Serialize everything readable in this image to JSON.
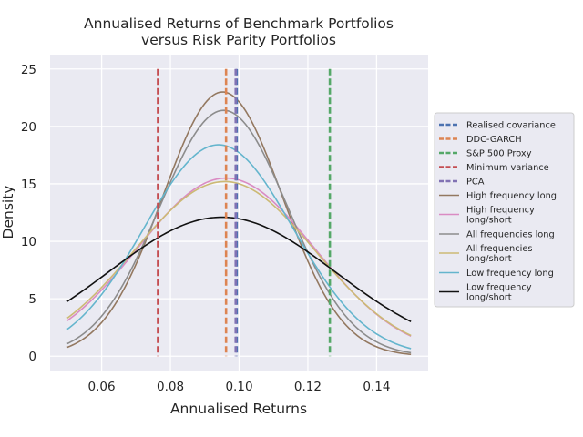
{
  "chart_data": {
    "type": "line",
    "title_line1": "Annualised Returns of Benchmark Portfolios",
    "title_line2": "versus Risk Parity Portfolios",
    "xlabel": "Annualised Returns",
    "ylabel": "Density",
    "xlim": [
      0.045,
      0.155
    ],
    "ylim": [
      -1.25,
      26.25
    ],
    "xticks": [
      0.06,
      0.08,
      0.1,
      0.12,
      0.14
    ],
    "xtick_labels": [
      "0.06",
      "0.08",
      "0.10",
      "0.12",
      "0.14"
    ],
    "yticks": [
      0,
      5,
      10,
      15,
      20,
      25
    ],
    "ytick_labels": [
      "0",
      "5",
      "10",
      "15",
      "20",
      "25"
    ],
    "grid": true,
    "legend_position": "right",
    "vlines": [
      {
        "name": "Realised covariance",
        "x": 0.0993,
        "color": "#4c72b0"
      },
      {
        "name": "DDC-GARCH",
        "x": 0.0962,
        "color": "#dd8452"
      },
      {
        "name": "S&P 500 Proxy",
        "x": 0.1264,
        "color": "#55a868"
      },
      {
        "name": "Minimum variance",
        "x": 0.0764,
        "color": "#c44e52"
      },
      {
        "name": "PCA",
        "x": 0.099,
        "color": "#8172b3"
      }
    ],
    "curve_x_range": [
      0.05,
      0.15
    ],
    "series": [
      {
        "name": "High frequency long",
        "legend_lines": [
          "High frequency long"
        ],
        "mean": 0.0952,
        "peak": 23.0,
        "color": "#937860"
      },
      {
        "name": "High frequency long/short",
        "legend_lines": [
          "High frequency",
          "long/short"
        ],
        "mean": 0.0962,
        "peak": 15.5,
        "color": "#da8bc3"
      },
      {
        "name": "All frequencies long",
        "legend_lines": [
          "All frequencies long"
        ],
        "mean": 0.0955,
        "peak": 21.4,
        "color": "#8c8c8c"
      },
      {
        "name": "All frequencies long/short",
        "legend_lines": [
          "All frequencies",
          "long/short"
        ],
        "mean": 0.0958,
        "peak": 15.2,
        "color": "#ccb974"
      },
      {
        "name": "Low frequency long",
        "legend_lines": [
          "Low frequency long"
        ],
        "mean": 0.094,
        "peak": 18.4,
        "color": "#64b5cd"
      },
      {
        "name": "Low frequency long/short",
        "legend_lines": [
          "Low frequency",
          "long/short"
        ],
        "mean": 0.095,
        "peak": 12.1,
        "color": "#111111"
      }
    ]
  }
}
